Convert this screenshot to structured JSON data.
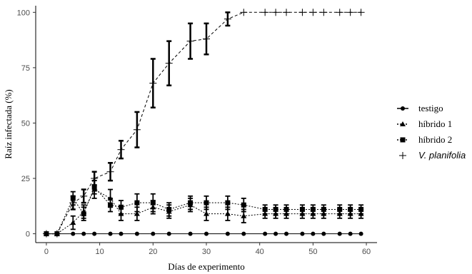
{
  "chart_data": {
    "type": "line",
    "xlabel": "Días de experimento",
    "ylabel": "Raíz infectada (%)",
    "xlim": [
      -2,
      62
    ],
    "ylim": [
      -4,
      103
    ],
    "xticks": [
      0,
      10,
      20,
      30,
      40,
      50,
      60
    ],
    "yticks": [
      0,
      25,
      50,
      75,
      100
    ],
    "grid": false,
    "legend_position": "right",
    "series": [
      {
        "name": "testigo",
        "marker": "circle",
        "line": "solid",
        "x": [
          0,
          2,
          5,
          7,
          9,
          12,
          14,
          17,
          20,
          23,
          27,
          30,
          34,
          37,
          41,
          43,
          45,
          48,
          50,
          52,
          55,
          57,
          59
        ],
        "y": [
          0,
          0,
          0,
          0,
          0,
          0,
          0,
          0,
          0,
          0,
          0,
          0,
          0,
          0,
          0,
          0,
          0,
          0,
          0,
          0,
          0,
          0,
          0
        ],
        "err": [
          0,
          0,
          0,
          0,
          0,
          0,
          0,
          0,
          0,
          0,
          0,
          0,
          0,
          0,
          0,
          0,
          0,
          0,
          0,
          0,
          0,
          0,
          0
        ]
      },
      {
        "name": "híbrido 1",
        "marker": "triangle",
        "line": "dotted",
        "x": [
          0,
          2,
          5,
          7,
          9,
          12,
          14,
          17,
          20,
          23,
          27,
          30,
          34,
          37,
          41,
          43,
          45,
          48,
          50,
          52,
          55,
          57,
          59
        ],
        "y": [
          0,
          0,
          5,
          10,
          20,
          16,
          9,
          9,
          12,
          10,
          13,
          9,
          9,
          8,
          9,
          9,
          9,
          9,
          9,
          9,
          9,
          9,
          9
        ],
        "err": [
          0,
          0,
          3,
          3,
          4,
          4,
          3,
          3,
          3,
          3,
          3,
          3,
          3,
          3,
          2,
          2,
          2,
          2,
          2,
          2,
          2,
          2,
          2
        ]
      },
      {
        "name": "híbrido 2",
        "marker": "square",
        "line": "dotted",
        "x": [
          0,
          2,
          5,
          7,
          9,
          12,
          14,
          17,
          20,
          23,
          27,
          30,
          34,
          37,
          41,
          43,
          45,
          48,
          50,
          52,
          55,
          57,
          59
        ],
        "y": [
          0,
          0,
          16,
          9,
          21,
          13,
          12,
          14,
          14,
          11,
          14,
          14,
          14,
          13,
          11,
          11,
          11,
          11,
          11,
          11,
          11,
          11,
          11
        ],
        "err": [
          0,
          0,
          3,
          3,
          3,
          3,
          3,
          4,
          4,
          3,
          3,
          3,
          3,
          3,
          2,
          2,
          2,
          2,
          2,
          2,
          2,
          2,
          2
        ]
      },
      {
        "name": "V. planifolia",
        "marker": "plus",
        "line": "dashed",
        "x": [
          0,
          2,
          5,
          7,
          9,
          12,
          14,
          17,
          20,
          23,
          27,
          30,
          34,
          37,
          41,
          43,
          45,
          48,
          50,
          52,
          55,
          57,
          59
        ],
        "y": [
          0,
          0,
          14,
          17,
          25,
          28,
          38,
          47,
          68,
          77,
          87,
          88,
          97,
          100,
          100,
          100,
          100,
          100,
          100,
          100,
          100,
          100,
          100
        ],
        "err": [
          0,
          0,
          3,
          3,
          3,
          4,
          4,
          8,
          11,
          10,
          8,
          7,
          3,
          0,
          0,
          0,
          0,
          0,
          0,
          0,
          0,
          0,
          0
        ]
      }
    ]
  }
}
